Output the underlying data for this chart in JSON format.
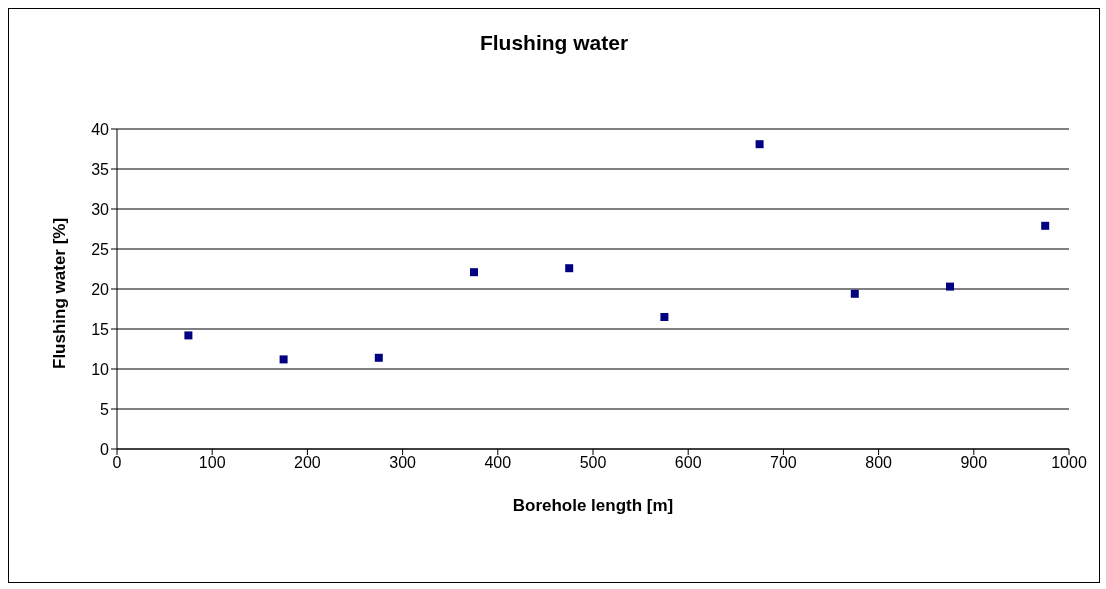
{
  "chart_data": {
    "type": "scatter",
    "title": "Flushing water",
    "xlabel": "Borehole length [m]",
    "ylabel": "Flushing water [%]",
    "x": [
      75,
      175,
      275,
      375,
      475,
      575,
      675,
      775,
      875,
      975
    ],
    "series": [
      {
        "color": "#000080",
        "values": [
          14.2,
          11.2,
          11.4,
          22.1,
          22.6,
          16.5,
          38.1,
          19.4,
          20.3,
          27.9
        ]
      }
    ],
    "xlim": [
      0,
      1000
    ],
    "xticks": [
      0,
      100,
      200,
      300,
      400,
      500,
      600,
      700,
      800,
      900,
      1000
    ],
    "ylim": [
      0,
      40
    ],
    "yticks": [
      0,
      5,
      10,
      15,
      20,
      25,
      30,
      35,
      40
    ],
    "grid": "y",
    "marker": "square",
    "legend": false
  }
}
